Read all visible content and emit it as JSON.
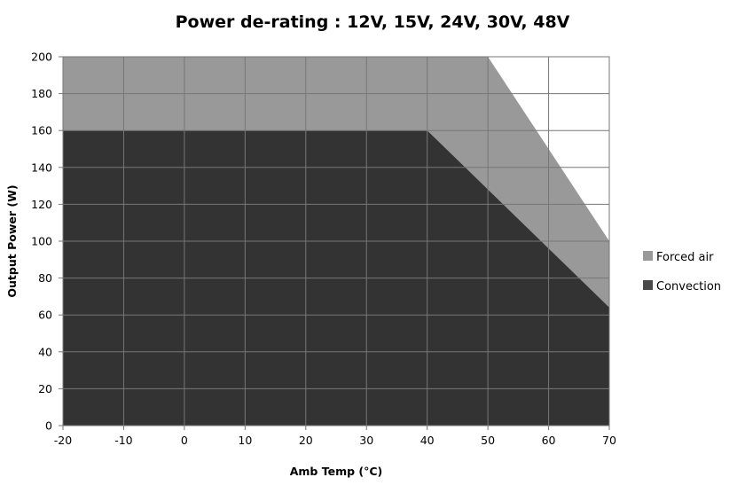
{
  "chart_data": {
    "type": "area",
    "title": "Power de-rating : 12V, 15V, 24V, 30V, 48V",
    "xlabel": "Amb Temp (°C)",
    "ylabel": "Output Power (W)",
    "xlim": [
      -20,
      70
    ],
    "ylim": [
      0,
      200
    ],
    "xticks": [
      -20,
      -10,
      0,
      10,
      20,
      30,
      40,
      50,
      60,
      70
    ],
    "yticks": [
      0,
      20,
      40,
      60,
      80,
      100,
      120,
      140,
      160,
      180,
      200
    ],
    "grid": true,
    "legend_position": "right",
    "series": [
      {
        "name": "Forced air",
        "color": "#999999",
        "x": [
          -20,
          50,
          70
        ],
        "y": [
          200,
          200,
          100
        ]
      },
      {
        "name": "Convection",
        "color": "#333333",
        "x": [
          -20,
          40,
          70
        ],
        "y": [
          160,
          160,
          64
        ]
      }
    ]
  }
}
